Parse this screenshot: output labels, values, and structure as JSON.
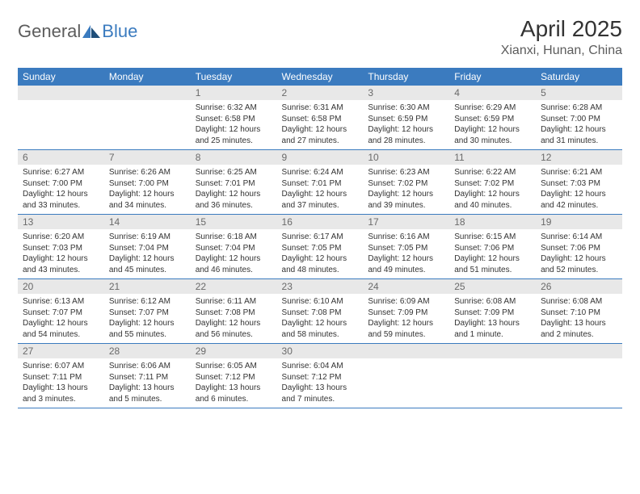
{
  "header": {
    "logo_general": "General",
    "logo_blue": "Blue",
    "month_title": "April 2025",
    "location": "Xianxi, Hunan, China"
  },
  "styling": {
    "header_bg": "#3b7bbf",
    "header_text": "#ffffff",
    "daynum_bg": "#e8e8e8",
    "daynum_text": "#6a6a6a",
    "body_text": "#333333",
    "row_border": "#3b7bbf",
    "page_bg": "#ffffff",
    "month_title_fontsize": 28,
    "location_fontsize": 16,
    "dayheader_fontsize": 12,
    "cell_fontsize": 10
  },
  "day_headers": [
    "Sunday",
    "Monday",
    "Tuesday",
    "Wednesday",
    "Thursday",
    "Friday",
    "Saturday"
  ],
  "weeks": [
    [
      {
        "day": "",
        "sunrise": "",
        "sunset": "",
        "daylight": ""
      },
      {
        "day": "",
        "sunrise": "",
        "sunset": "",
        "daylight": ""
      },
      {
        "day": "1",
        "sunrise": "Sunrise: 6:32 AM",
        "sunset": "Sunset: 6:58 PM",
        "daylight": "Daylight: 12 hours and 25 minutes."
      },
      {
        "day": "2",
        "sunrise": "Sunrise: 6:31 AM",
        "sunset": "Sunset: 6:58 PM",
        "daylight": "Daylight: 12 hours and 27 minutes."
      },
      {
        "day": "3",
        "sunrise": "Sunrise: 6:30 AM",
        "sunset": "Sunset: 6:59 PM",
        "daylight": "Daylight: 12 hours and 28 minutes."
      },
      {
        "day": "4",
        "sunrise": "Sunrise: 6:29 AM",
        "sunset": "Sunset: 6:59 PM",
        "daylight": "Daylight: 12 hours and 30 minutes."
      },
      {
        "day": "5",
        "sunrise": "Sunrise: 6:28 AM",
        "sunset": "Sunset: 7:00 PM",
        "daylight": "Daylight: 12 hours and 31 minutes."
      }
    ],
    [
      {
        "day": "6",
        "sunrise": "Sunrise: 6:27 AM",
        "sunset": "Sunset: 7:00 PM",
        "daylight": "Daylight: 12 hours and 33 minutes."
      },
      {
        "day": "7",
        "sunrise": "Sunrise: 6:26 AM",
        "sunset": "Sunset: 7:00 PM",
        "daylight": "Daylight: 12 hours and 34 minutes."
      },
      {
        "day": "8",
        "sunrise": "Sunrise: 6:25 AM",
        "sunset": "Sunset: 7:01 PM",
        "daylight": "Daylight: 12 hours and 36 minutes."
      },
      {
        "day": "9",
        "sunrise": "Sunrise: 6:24 AM",
        "sunset": "Sunset: 7:01 PM",
        "daylight": "Daylight: 12 hours and 37 minutes."
      },
      {
        "day": "10",
        "sunrise": "Sunrise: 6:23 AM",
        "sunset": "Sunset: 7:02 PM",
        "daylight": "Daylight: 12 hours and 39 minutes."
      },
      {
        "day": "11",
        "sunrise": "Sunrise: 6:22 AM",
        "sunset": "Sunset: 7:02 PM",
        "daylight": "Daylight: 12 hours and 40 minutes."
      },
      {
        "day": "12",
        "sunrise": "Sunrise: 6:21 AM",
        "sunset": "Sunset: 7:03 PM",
        "daylight": "Daylight: 12 hours and 42 minutes."
      }
    ],
    [
      {
        "day": "13",
        "sunrise": "Sunrise: 6:20 AM",
        "sunset": "Sunset: 7:03 PM",
        "daylight": "Daylight: 12 hours and 43 minutes."
      },
      {
        "day": "14",
        "sunrise": "Sunrise: 6:19 AM",
        "sunset": "Sunset: 7:04 PM",
        "daylight": "Daylight: 12 hours and 45 minutes."
      },
      {
        "day": "15",
        "sunrise": "Sunrise: 6:18 AM",
        "sunset": "Sunset: 7:04 PM",
        "daylight": "Daylight: 12 hours and 46 minutes."
      },
      {
        "day": "16",
        "sunrise": "Sunrise: 6:17 AM",
        "sunset": "Sunset: 7:05 PM",
        "daylight": "Daylight: 12 hours and 48 minutes."
      },
      {
        "day": "17",
        "sunrise": "Sunrise: 6:16 AM",
        "sunset": "Sunset: 7:05 PM",
        "daylight": "Daylight: 12 hours and 49 minutes."
      },
      {
        "day": "18",
        "sunrise": "Sunrise: 6:15 AM",
        "sunset": "Sunset: 7:06 PM",
        "daylight": "Daylight: 12 hours and 51 minutes."
      },
      {
        "day": "19",
        "sunrise": "Sunrise: 6:14 AM",
        "sunset": "Sunset: 7:06 PM",
        "daylight": "Daylight: 12 hours and 52 minutes."
      }
    ],
    [
      {
        "day": "20",
        "sunrise": "Sunrise: 6:13 AM",
        "sunset": "Sunset: 7:07 PM",
        "daylight": "Daylight: 12 hours and 54 minutes."
      },
      {
        "day": "21",
        "sunrise": "Sunrise: 6:12 AM",
        "sunset": "Sunset: 7:07 PM",
        "daylight": "Daylight: 12 hours and 55 minutes."
      },
      {
        "day": "22",
        "sunrise": "Sunrise: 6:11 AM",
        "sunset": "Sunset: 7:08 PM",
        "daylight": "Daylight: 12 hours and 56 minutes."
      },
      {
        "day": "23",
        "sunrise": "Sunrise: 6:10 AM",
        "sunset": "Sunset: 7:08 PM",
        "daylight": "Daylight: 12 hours and 58 minutes."
      },
      {
        "day": "24",
        "sunrise": "Sunrise: 6:09 AM",
        "sunset": "Sunset: 7:09 PM",
        "daylight": "Daylight: 12 hours and 59 minutes."
      },
      {
        "day": "25",
        "sunrise": "Sunrise: 6:08 AM",
        "sunset": "Sunset: 7:09 PM",
        "daylight": "Daylight: 13 hours and 1 minute."
      },
      {
        "day": "26",
        "sunrise": "Sunrise: 6:08 AM",
        "sunset": "Sunset: 7:10 PM",
        "daylight": "Daylight: 13 hours and 2 minutes."
      }
    ],
    [
      {
        "day": "27",
        "sunrise": "Sunrise: 6:07 AM",
        "sunset": "Sunset: 7:11 PM",
        "daylight": "Daylight: 13 hours and 3 minutes."
      },
      {
        "day": "28",
        "sunrise": "Sunrise: 6:06 AM",
        "sunset": "Sunset: 7:11 PM",
        "daylight": "Daylight: 13 hours and 5 minutes."
      },
      {
        "day": "29",
        "sunrise": "Sunrise: 6:05 AM",
        "sunset": "Sunset: 7:12 PM",
        "daylight": "Daylight: 13 hours and 6 minutes."
      },
      {
        "day": "30",
        "sunrise": "Sunrise: 6:04 AM",
        "sunset": "Sunset: 7:12 PM",
        "daylight": "Daylight: 13 hours and 7 minutes."
      },
      {
        "day": "",
        "sunrise": "",
        "sunset": "",
        "daylight": ""
      },
      {
        "day": "",
        "sunrise": "",
        "sunset": "",
        "daylight": ""
      },
      {
        "day": "",
        "sunrise": "",
        "sunset": "",
        "daylight": ""
      }
    ]
  ]
}
